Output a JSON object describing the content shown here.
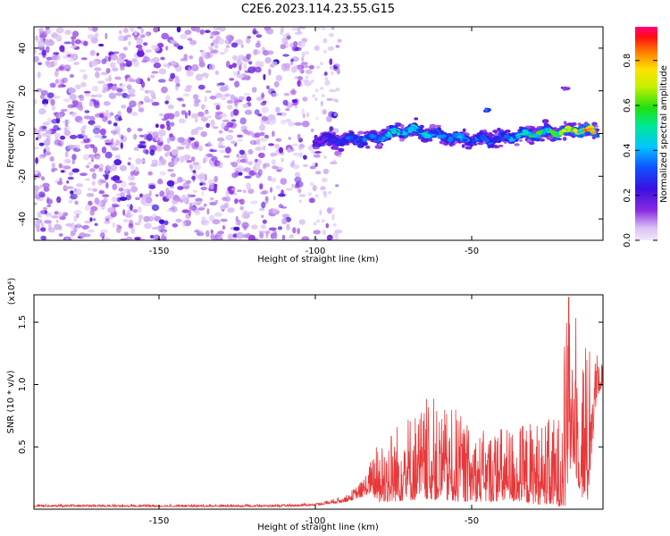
{
  "figure": {
    "title": "C2E6.2023.114.23.55.G15"
  },
  "chart_data": [
    {
      "type": "heatmap",
      "title": "C2E6.2023.114.23.55.G15",
      "xlabel": "Height of straight line (km)",
      "ylabel": "Frequency (Hz)",
      "xlim": [
        -190,
        -8
      ],
      "ylim": [
        -50,
        50
      ],
      "x_ticks": [
        -150,
        -100,
        -50
      ],
      "x_tick_labels": [
        "-150",
        "-100",
        "-50"
      ],
      "y_ticks": [
        -40,
        -20,
        0,
        20,
        40
      ],
      "y_tick_labels": [
        "-40",
        "-20",
        "0",
        "20",
        "40"
      ],
      "colorbar": {
        "label": "Normalized spectral amplitude",
        "range": [
          0,
          0.95
        ],
        "ticks": [
          0.0,
          0.2,
          0.4,
          0.6,
          0.8
        ],
        "tick_labels": [
          "0.0",
          "0.2",
          "0.4",
          "0.6",
          "0.8"
        ],
        "colormap": "rainbow (violet-blue-cyan-green-yellow-orange-red)"
      },
      "noise_region_x": [
        -190,
        -100
      ],
      "noise_amplitude": 0.1,
      "ridge": {
        "x": [
          -100,
          -90,
          -80,
          -70,
          -60,
          -50,
          -40,
          -30,
          -20,
          -15,
          -10
        ],
        "frequency": [
          -3,
          -3,
          -2,
          2,
          -1,
          -3,
          -2,
          0,
          1,
          2,
          0
        ],
        "amplitude": [
          0.25,
          0.35,
          0.45,
          0.55,
          0.45,
          0.4,
          0.4,
          0.6,
          0.75,
          0.85,
          0.9
        ]
      },
      "secondary_features": [
        {
          "x": -45,
          "frequency": 11,
          "amplitude": 0.35
        },
        {
          "x": -20,
          "frequency": 21,
          "amplitude": 0.15
        }
      ],
      "grid": false
    },
    {
      "type": "line",
      "title": "",
      "xlabel": "Height of straight line (km)",
      "ylabel": "SNR (10 * v/v)",
      "yscale_label": "(x10⁴)",
      "xlim": [
        -190,
        -8
      ],
      "ylim": [
        0,
        1.72
      ],
      "x_ticks": [
        -150,
        -100,
        -50
      ],
      "x_tick_labels": [
        "-150",
        "-100",
        "-50"
      ],
      "y_ticks": [
        0.5,
        1.0,
        1.5
      ],
      "y_tick_labels": [
        "0.5",
        "1.0",
        "1.5"
      ],
      "grid": false,
      "series": [
        {
          "color": "#e8383a",
          "envelope_x": [
            -190,
            -110,
            -100,
            -90,
            -85,
            -82,
            -80,
            -75,
            -70,
            -65,
            -60,
            -55,
            -50,
            -45,
            -40,
            -35,
            -30,
            -25,
            -22,
            -20,
            -18,
            -17,
            -15,
            -13,
            -10,
            -8
          ],
          "envelope_base": [
            0.02,
            0.02,
            0.03,
            0.06,
            0.1,
            0.13,
            0.05,
            0.06,
            0.07,
            0.08,
            0.07,
            0.06,
            0.06,
            0.06,
            0.06,
            0.06,
            0.04,
            0.03,
            0.02,
            0.02,
            0.4,
            0.3,
            0.1,
            0.04,
            0.9,
            1.0
          ],
          "envelope_peak": [
            0.04,
            0.04,
            0.05,
            0.12,
            0.25,
            0.45,
            0.6,
            0.75,
            0.88,
            0.92,
            0.87,
            0.9,
            0.7,
            0.7,
            0.75,
            0.75,
            0.8,
            0.8,
            0.85,
            1.7,
            1.65,
            1.55,
            1.55,
            1.4,
            1.3,
            1.2
          ],
          "max_point": {
            "x": -19,
            "y": 1.7
          }
        }
      ]
    }
  ]
}
